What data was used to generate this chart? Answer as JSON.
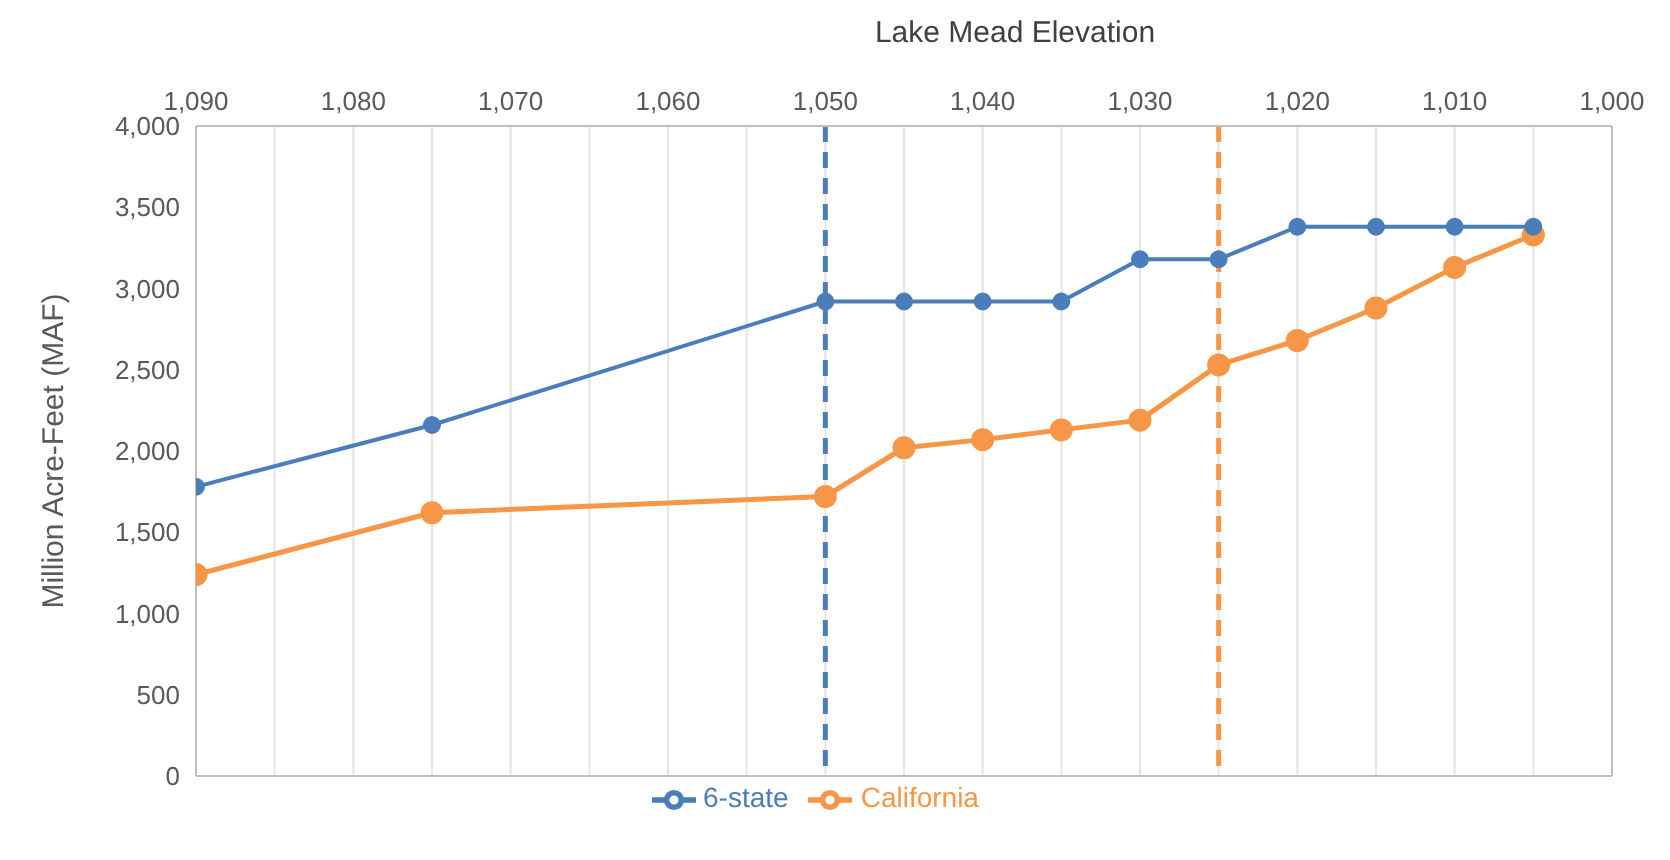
{
  "chart_data": {
    "type": "line",
    "xlabel": "Lake Mead Elevation",
    "ylabel": "Million Acre-Feet (MAF)",
    "xlim": [
      1090,
      1000
    ],
    "xticks": [
      {
        "value": 1090,
        "label": "1,090"
      },
      {
        "value": 1085,
        "label": null
      },
      {
        "value": 1080,
        "label": "1,080"
      },
      {
        "value": 1075,
        "label": null
      },
      {
        "value": 1070,
        "label": "1,070"
      },
      {
        "value": 1065,
        "label": null
      },
      {
        "value": 1060,
        "label": "1,060"
      },
      {
        "value": 1055,
        "label": null
      },
      {
        "value": 1050,
        "label": "1,050"
      },
      {
        "value": 1045,
        "label": null
      },
      {
        "value": 1040,
        "label": "1,040"
      },
      {
        "value": 1035,
        "label": null
      },
      {
        "value": 1030,
        "label": "1,030"
      },
      {
        "value": 1025,
        "label": null
      },
      {
        "value": 1020,
        "label": "1,020"
      },
      {
        "value": 1015,
        "label": null
      },
      {
        "value": 1010,
        "label": "1,010"
      },
      {
        "value": 1005,
        "label": null
      },
      {
        "value": 1000,
        "label": "1,000"
      }
    ],
    "ylim": [
      0,
      4000
    ],
    "yticks": [
      {
        "value": 0,
        "label": "0"
      },
      {
        "value": 500,
        "label": "500"
      },
      {
        "value": 1000,
        "label": "1,000"
      },
      {
        "value": 1500,
        "label": "1,500"
      },
      {
        "value": 2000,
        "label": "2,000"
      },
      {
        "value": 2500,
        "label": "2,500"
      },
      {
        "value": 3000,
        "label": "3,000"
      },
      {
        "value": 3500,
        "label": "3,500"
      },
      {
        "value": 4000,
        "label": "4,000"
      }
    ],
    "x": [
      1090,
      1075,
      1050,
      1045,
      1040,
      1035,
      1030,
      1025,
      1020,
      1015,
      1010,
      1005
    ],
    "series": [
      {
        "name": "6-state",
        "color": "#4a7ebb",
        "values": [
          1780,
          2160,
          2920,
          2920,
          2920,
          2920,
          3180,
          3180,
          3380,
          3380,
          3380,
          3380
        ]
      },
      {
        "name": "California",
        "color": "#f79646",
        "values": [
          1240,
          1620,
          1720,
          2020,
          2070,
          2130,
          2190,
          2530,
          2680,
          2880,
          3130,
          3330
        ]
      }
    ],
    "ref_lines": [
      {
        "axis": "x",
        "value": 1050,
        "color": "#4a7ebb",
        "line_style": "dashed"
      },
      {
        "axis": "x",
        "value": 1025,
        "color": "#f79646",
        "line_style": "dashed"
      }
    ],
    "grid": "x",
    "legend": "bottom",
    "marker": "circle",
    "line_style": "solid"
  }
}
